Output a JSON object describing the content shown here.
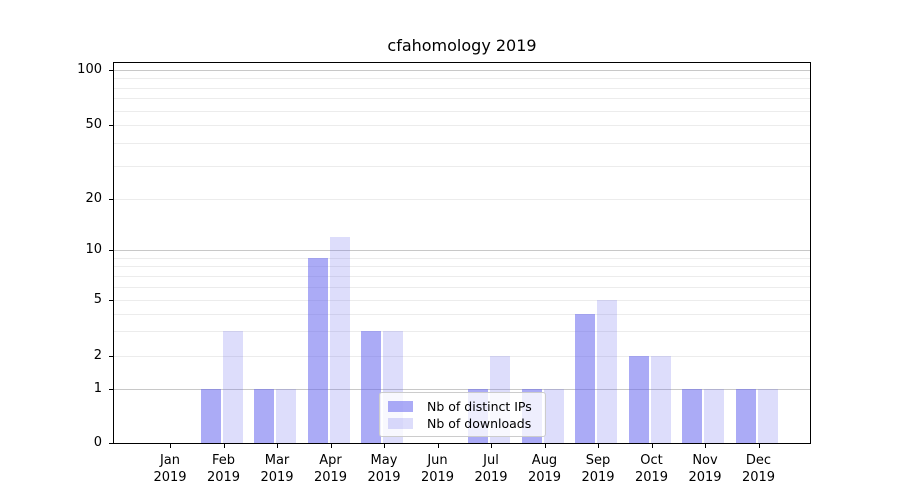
{
  "chart_data": {
    "type": "bar",
    "title": "cfahomology 2019",
    "months": [
      "Jan",
      "Feb",
      "Mar",
      "Apr",
      "May",
      "Jun",
      "Jul",
      "Aug",
      "Sep",
      "Oct",
      "Nov",
      "Dec"
    ],
    "year": "2019",
    "series": [
      {
        "name": "Nb of distinct IPs",
        "color": "#6666ee",
        "alpha": 0.55,
        "values": [
          0,
          1,
          1,
          9,
          3,
          0,
          1,
          1,
          4,
          2,
          1,
          1
        ]
      },
      {
        "name": "Nb of downloads",
        "color": "#6666ee",
        "alpha": 0.22,
        "values": [
          0,
          3,
          1,
          12,
          3,
          0,
          2,
          1,
          5,
          2,
          1,
          1
        ]
      }
    ],
    "yticks": [
      0,
      1,
      2,
      5,
      10,
      20,
      50,
      100
    ],
    "yscale": "linear below 1, log above 1",
    "ylim": [
      0,
      140
    ],
    "xlabel": "",
    "ylabel": "",
    "grid": "horizontal major + log minor",
    "legend_position": "lower center"
  }
}
